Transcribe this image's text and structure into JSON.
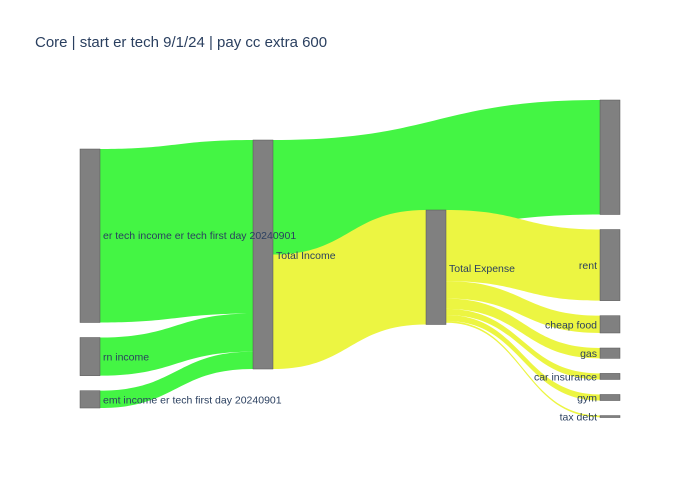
{
  "chart_data": {
    "type": "sankey",
    "title": "Core | start er tech 9/1/24 | pay cc extra 600",
    "colors": {
      "node": "#808080",
      "node_border": "#555555",
      "income_link": "#44f544",
      "expense_link": "#ecf542"
    },
    "nodes": [
      {
        "id": "er_tech",
        "label": "er tech income er tech first day 20240901",
        "column": 0,
        "value": 10.0
      },
      {
        "id": "rn",
        "label": "rn income",
        "column": 0,
        "value": 2.2
      },
      {
        "id": "emt",
        "label": "emt income er tech first day 20240901",
        "column": 0,
        "value": 1.0
      },
      {
        "id": "total_income",
        "label": "Total Income",
        "column": 1,
        "value": 13.2
      },
      {
        "id": "total_expense",
        "label": "Total Expense",
        "column": 2,
        "value": 6.6
      },
      {
        "id": "remainder",
        "label": "",
        "column": 3,
        "value": 6.6
      },
      {
        "id": "rent",
        "label": "rent",
        "column": 3,
        "value": 4.1
      },
      {
        "id": "cheap_food",
        "label": "cheap food",
        "column": 3,
        "value": 1.0
      },
      {
        "id": "gas",
        "label": "gas",
        "column": 3,
        "value": 0.6
      },
      {
        "id": "car_insurance",
        "label": "car insurance",
        "column": 3,
        "value": 0.35
      },
      {
        "id": "gym",
        "label": "gym",
        "column": 3,
        "value": 0.35
      },
      {
        "id": "tax_debt",
        "label": "tax debt",
        "column": 3,
        "value": 0.1
      }
    ],
    "links": [
      {
        "source": "er_tech",
        "target": "total_income",
        "value": 10.0,
        "kind": "income"
      },
      {
        "source": "rn",
        "target": "total_income",
        "value": 2.2,
        "kind": "income"
      },
      {
        "source": "emt",
        "target": "total_income",
        "value": 1.0,
        "kind": "income"
      },
      {
        "source": "total_income",
        "target": "remainder",
        "value": 6.6,
        "kind": "income"
      },
      {
        "source": "total_income",
        "target": "total_expense",
        "value": 6.6,
        "kind": "expense"
      },
      {
        "source": "total_expense",
        "target": "rent",
        "value": 4.1,
        "kind": "expense"
      },
      {
        "source": "total_expense",
        "target": "cheap_food",
        "value": 1.0,
        "kind": "expense"
      },
      {
        "source": "total_expense",
        "target": "gas",
        "value": 0.6,
        "kind": "expense"
      },
      {
        "source": "total_expense",
        "target": "car_insurance",
        "value": 0.35,
        "kind": "expense"
      },
      {
        "source": "total_expense",
        "target": "gym",
        "value": 0.35,
        "kind": "expense"
      },
      {
        "source": "total_expense",
        "target": "tax_debt",
        "value": 0.1,
        "kind": "expense"
      }
    ]
  }
}
